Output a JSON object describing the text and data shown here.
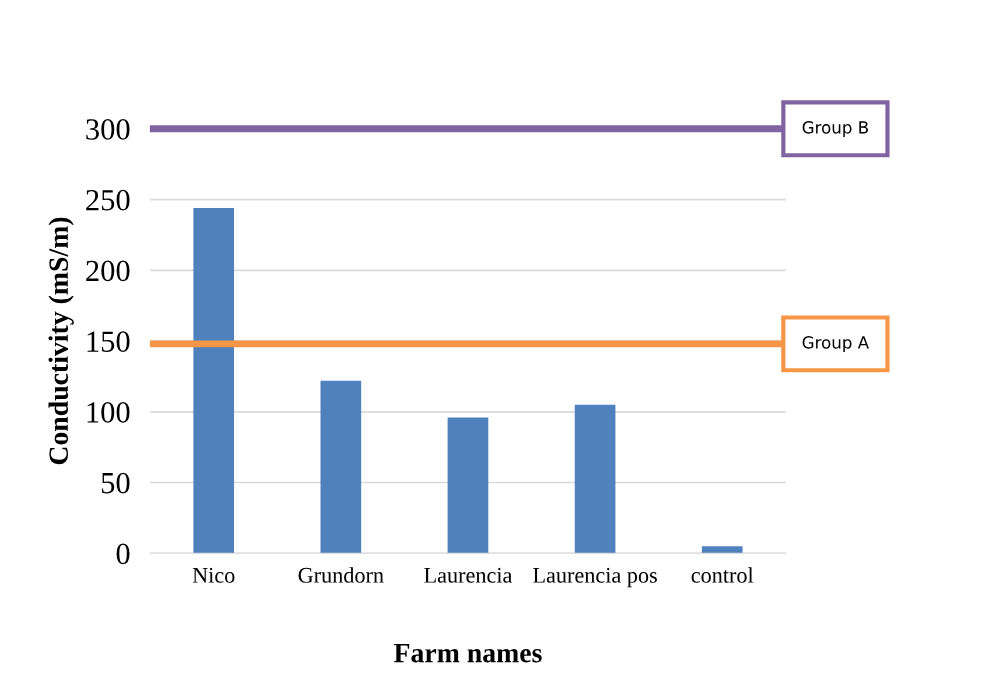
{
  "chart_data": {
    "type": "bar",
    "xlabel": "Farm names",
    "ylabel": "Conductivity (mS/m)",
    "categories": [
      "Nico",
      "Grundorn",
      "Laurencia",
      "Laurencia pos",
      "control"
    ],
    "values": [
      244,
      122,
      96,
      105,
      5
    ],
    "color": "#4f81bd",
    "ylim": [
      0,
      300
    ],
    "yticks": [
      0,
      50,
      100,
      150,
      200,
      250,
      300
    ],
    "grid": "y",
    "ref_lines": [
      {
        "axis": "y",
        "value": 300,
        "label": "Group B",
        "color": "#8064a2"
      },
      {
        "axis": "y",
        "value": 148,
        "label": "Group A",
        "color": "#f79646"
      }
    ]
  }
}
